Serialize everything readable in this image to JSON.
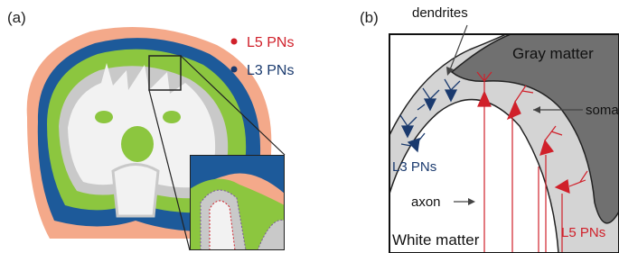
{
  "panel_a": {
    "label": "(a)",
    "legend": [
      "L5 PNs",
      "L3 PNs"
    ]
  },
  "panel_b": {
    "label": "(b)",
    "dendrites": "dendrites",
    "gray_matter": "Gray matter",
    "soma": "soma",
    "l3_label": "L3 PNs",
    "axon": "axon",
    "white_matter": "White matter",
    "l5_label": "L5 PNs"
  }
}
